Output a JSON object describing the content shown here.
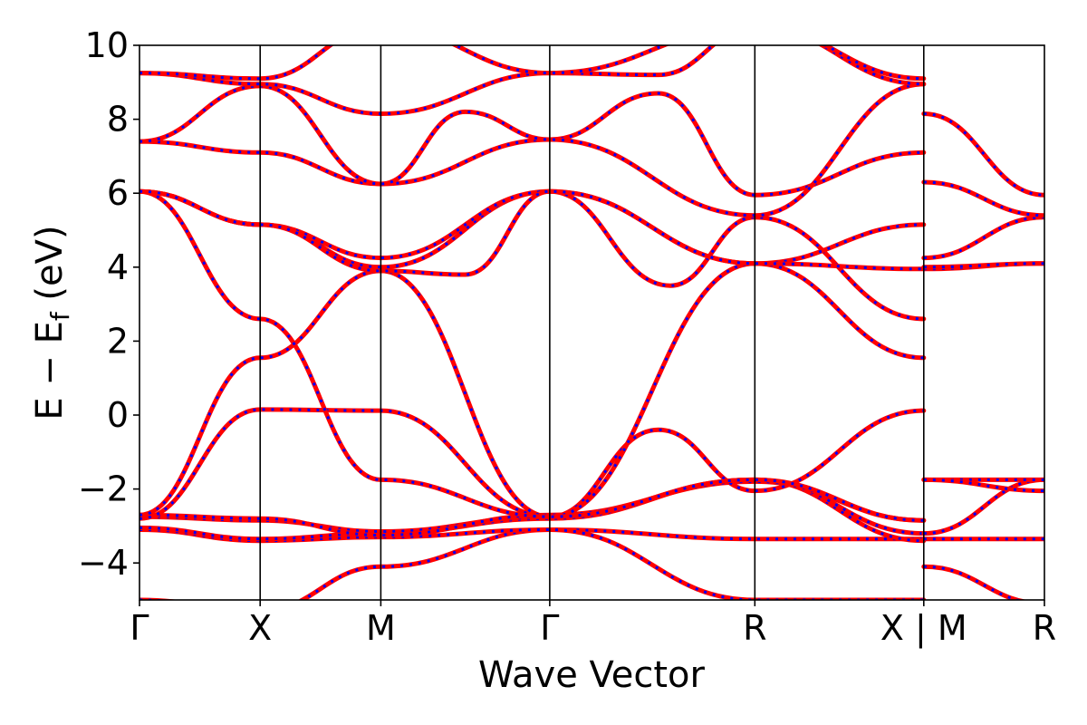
{
  "chart_data": {
    "type": "line",
    "title": "",
    "xlabel": "Wave Vector",
    "ylabel": "E − E_f (eV)",
    "ylabel_main": "E − E",
    "ylabel_sub": "f",
    "ylabel_unit": " (eV)",
    "ylim": [
      -5,
      10
    ],
    "yticks": [
      "−4",
      "−2",
      "0",
      "2",
      "4",
      "6",
      "8",
      "10"
    ],
    "ytick_values": [
      -4,
      -2,
      0,
      2,
      4,
      6,
      8,
      10
    ],
    "xlim": [
      0,
      7.5
    ],
    "kpoints": [
      {
        "label": "Γ",
        "x": 0
      },
      {
        "label": "X",
        "x": 1
      },
      {
        "label": "M",
        "x": 2
      },
      {
        "label": "Γ",
        "x": 3.4
      },
      {
        "label": "R",
        "x": 5.1
      },
      {
        "label": "X | M",
        "x": 6.5
      },
      {
        "label": "R",
        "x": 7.5
      }
    ],
    "segment_breaks": [
      6.5
    ],
    "grid": false,
    "legend": "none",
    "colors": {
      "series_a": "#ff0000",
      "series_b": "#0000ff"
    },
    "series": [
      {
        "x": [
          0,
          1,
          2,
          3.4,
          5.1,
          6.5
        ],
        "values": [
          -5.0,
          -5.3,
          -4.1,
          -3.1,
          -3.35,
          -3.35
        ]
      },
      {
        "x": [
          0,
          1,
          2,
          3.4,
          5.1,
          6.5
        ],
        "values": [
          -3.1,
          -3.4,
          -3.3,
          -3.1,
          -5.0,
          -5.0
        ]
      },
      {
        "x": [
          0,
          1,
          2,
          3.4,
          5.1,
          6.5
        ],
        "values": [
          -3.05,
          -3.35,
          -3.2,
          -2.8,
          -1.75,
          -3.4
        ]
      },
      {
        "x": [
          0,
          1,
          2,
          3.4,
          5.1,
          6.5
        ],
        "values": [
          -2.75,
          -2.85,
          -3.15,
          -2.75,
          -1.75,
          -3.2
        ]
      },
      {
        "x": [
          0,
          1,
          2,
          3.4,
          5.1,
          6.5
        ],
        "values": [
          -2.7,
          -2.8,
          -3.25,
          -2.7,
          -1.8,
          -2.85
        ]
      },
      {
        "x": [
          0,
          1,
          2,
          3.4,
          4.3,
          5.1,
          6.5
        ],
        "values": [
          -2.8,
          0.15,
          0.12,
          -2.75,
          -0.4,
          -2.05,
          0.12
        ]
      },
      {
        "x": [
          0,
          1,
          2,
          3.4,
          5.1,
          6.5
        ],
        "values": [
          -2.7,
          1.55,
          3.9,
          -2.75,
          4.1,
          1.55
        ]
      },
      {
        "x": [
          0,
          1,
          2,
          3.4,
          5.1,
          6.5
        ],
        "values": [
          6.05,
          2.6,
          -1.75,
          -2.75,
          -1.75,
          -2.85
        ]
      },
      {
        "x": [
          0,
          1,
          2,
          3.4,
          4.4,
          5.1,
          6.5
        ],
        "values": [
          6.05,
          5.15,
          4.0,
          6.05,
          3.5,
          5.35,
          2.6
        ]
      },
      {
        "x": [
          0,
          1,
          2,
          3.4,
          5.1,
          6.5
        ],
        "values": [
          6.05,
          5.15,
          4.25,
          6.05,
          4.1,
          5.15
        ]
      },
      {
        "x": [
          0,
          1,
          2,
          2.7,
          3.4,
          5.1,
          6.5
        ],
        "values": [
          6.05,
          5.15,
          3.9,
          3.8,
          6.05,
          4.1,
          3.95
        ]
      },
      {
        "x": [
          0,
          1,
          2,
          3.4,
          4.3,
          5.1,
          6.5
        ],
        "values": [
          7.4,
          7.1,
          6.25,
          7.45,
          8.7,
          5.95,
          7.1
        ]
      },
      {
        "x": [
          0,
          1,
          2,
          2.7,
          3.4,
          5.1,
          6.5
        ],
        "values": [
          7.4,
          8.9,
          6.25,
          8.2,
          7.45,
          5.4,
          8.95
        ]
      },
      {
        "x": [
          0,
          1,
          2,
          3.4,
          4.3,
          5.1,
          6.5
        ],
        "values": [
          9.25,
          8.95,
          8.15,
          9.25,
          9.2,
          10.5,
          8.95
        ]
      },
      {
        "x": [
          0,
          1,
          2,
          3.4,
          5.1,
          6.5
        ],
        "values": [
          9.25,
          9.1,
          10.5,
          9.25,
          10.5,
          9.1
        ]
      },
      {
        "x": [
          6.5,
          7.5
        ],
        "values": [
          -4.1,
          -5.1
        ]
      },
      {
        "x": [
          6.5,
          7.5
        ],
        "values": [
          -3.35,
          -3.35
        ]
      },
      {
        "x": [
          6.5,
          7.5
        ],
        "values": [
          -3.2,
          -1.75
        ]
      },
      {
        "x": [
          6.5,
          7.5
        ],
        "values": [
          -1.75,
          -1.75
        ]
      },
      {
        "x": [
          6.5,
          7.5
        ],
        "values": [
          -1.75,
          -2.05
        ]
      },
      {
        "x": [
          6.5,
          7.5
        ],
        "values": [
          3.95,
          4.1
        ]
      },
      {
        "x": [
          6.5,
          7.5
        ],
        "values": [
          4.0,
          4.1
        ]
      },
      {
        "x": [
          6.5,
          7.5
        ],
        "values": [
          4.25,
          5.35
        ]
      },
      {
        "x": [
          6.5,
          7.5
        ],
        "values": [
          6.3,
          5.4
        ]
      },
      {
        "x": [
          6.5,
          7.5
        ],
        "values": [
          8.15,
          5.95
        ]
      }
    ]
  }
}
